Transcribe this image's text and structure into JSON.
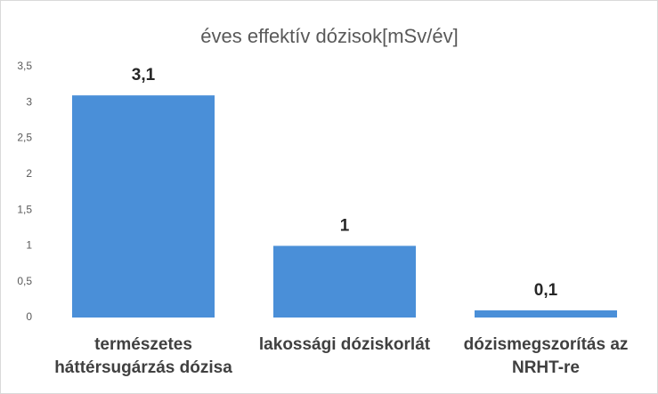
{
  "chart_data": {
    "type": "bar",
    "title": "éves effektív dózisok[mSv/év]",
    "categories": [
      "természetes háttérsugárzás dózisa",
      "lakossági dóziskorlát",
      "dózismegszorítás az NRHT-re"
    ],
    "values": [
      3.1,
      1,
      0.1
    ],
    "value_labels": [
      "3,1",
      "1",
      "0,1"
    ],
    "color": "#4a8fd8",
    "ylim": [
      0,
      3.5
    ],
    "yticks": [
      0,
      {
        "value": 0.5,
        "label": "0,5"
      },
      1,
      {
        "value": 1.5,
        "label": "1,5"
      },
      2,
      {
        "value": 2.5,
        "label": "2,5"
      },
      3,
      {
        "value": 3.5,
        "label": "3,5"
      }
    ],
    "grid": false
  }
}
